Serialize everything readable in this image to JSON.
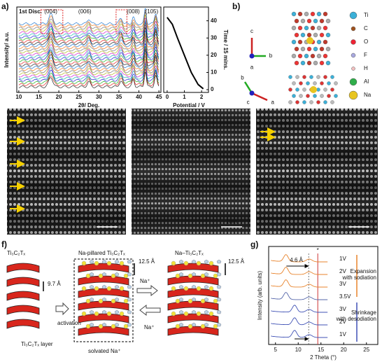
{
  "panel_labels": [
    "a)",
    "b)",
    "c)",
    "d)",
    "e)",
    "f)",
    "g)"
  ],
  "panel_a": {
    "annotation": "1st Disc.",
    "peak_labels": [
      "(004)",
      "(006)",
      "(008)",
      "(105)"
    ],
    "xrd": {
      "xlabel": "2θ/ Deg.",
      "ylabel": "Intensity/ a.u.",
      "xlim": [
        9.5,
        45.5
      ],
      "xticks": [
        10,
        15,
        20,
        25,
        30,
        35,
        40,
        45
      ]
    },
    "profile": {
      "xlabel": "Potential / V",
      "ylabel": "Time / 15 mins.",
      "xlim": [
        -0.2,
        2.4
      ],
      "xticks": [
        0,
        1,
        2
      ],
      "ylim": [
        -1.6,
        48
      ],
      "yticks": [
        0,
        10,
        20,
        30,
        40
      ],
      "x": [
        0.0,
        0.3,
        0.6,
        1.0,
        1.4,
        1.8,
        2.1
      ],
      "y": [
        42,
        38,
        30,
        20,
        10,
        3,
        0.5
      ]
    }
  },
  "panel_b": {
    "axes_top": [
      "c",
      "b",
      "a"
    ],
    "axes_bottom": [
      "b",
      "c",
      "a"
    ],
    "legend": [
      "Ti",
      "C",
      "O",
      "F",
      "H",
      "Al",
      "Na"
    ]
  },
  "panel_tem": {
    "scale_bars": [
      "1nm",
      "1nm",
      "1nm"
    ]
  },
  "panel_f": {
    "labels": [
      "Ti₃C₂Tₓ",
      "9.7 Å",
      "activation",
      "Ti₃C₂Tₓ layer",
      "Na-pillared Ti₃C₂Tₓ",
      "12.5 Å",
      "Na⁺",
      "solvated Na⁺",
      "Na–Ti₃C₂Tₓ",
      "12.5 Å",
      "Na⁺"
    ]
  },
  "panel_g": {
    "xlabel": "2 Theta (°)",
    "ylabel": "Intensity (arb. units)",
    "xlim": [
      3.5,
      27.5
    ],
    "xticks": [
      5,
      10,
      15,
      20,
      25
    ],
    "spacing": "4.6 Å",
    "star": "*",
    "curve_labels": [
      "1V",
      "2V",
      "3V",
      "3.5V",
      "3V",
      "2V",
      "1V"
    ],
    "expansion": [
      "Expansion",
      "with sodiation"
    ],
    "shrinkage": [
      "Shrinkage",
      "with desodiation"
    ]
  }
}
